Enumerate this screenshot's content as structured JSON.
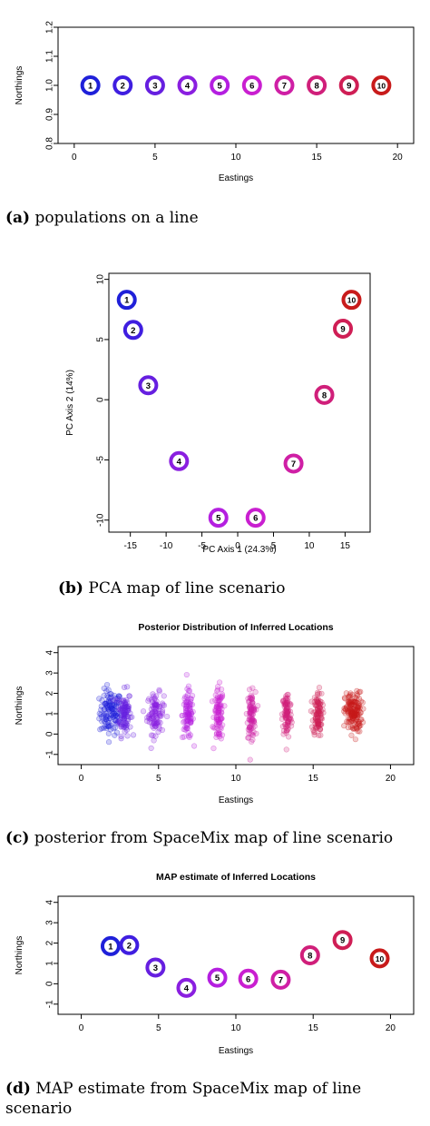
{
  "captions": {
    "a": {
      "tag": "(a)",
      "text": "populations on a line"
    },
    "b": {
      "tag": "(b)",
      "text": "PCA map of line scenario"
    },
    "c": {
      "tag": "(c)",
      "text": "posterior from SpaceMix map of line scenario"
    },
    "d": {
      "tag": "(d)",
      "text": "MAP estimate from SpaceMix map of line",
      "text2": "scenario"
    }
  },
  "chart_data": [
    {
      "type": "scatter",
      "title": "",
      "xlabel": "Eastings",
      "ylabel": "Northings",
      "xlim": [
        -1,
        21
      ],
      "ylim": [
        0.8,
        1.2
      ],
      "xticks": [
        0,
        5,
        10,
        15,
        20
      ],
      "yticks": [
        0.8,
        0.9,
        1.0,
        1.1,
        1.2
      ],
      "ytick_labels": [
        "0.8",
        "0.9",
        "1.0",
        "1.1",
        "1.2"
      ],
      "points": [
        {
          "label": "1",
          "x": 1,
          "y": 1.0
        },
        {
          "label": "2",
          "x": 3,
          "y": 1.0
        },
        {
          "label": "3",
          "x": 5,
          "y": 1.0
        },
        {
          "label": "4",
          "x": 7,
          "y": 1.0
        },
        {
          "label": "5",
          "x": 9,
          "y": 1.0
        },
        {
          "label": "6",
          "x": 11,
          "y": 1.0
        },
        {
          "label": "7",
          "x": 13,
          "y": 1.0
        },
        {
          "label": "8",
          "x": 15,
          "y": 1.0
        },
        {
          "label": "9",
          "x": 17,
          "y": 1.0
        },
        {
          "label": "10",
          "x": 19,
          "y": 1.0
        }
      ]
    },
    {
      "type": "scatter",
      "title": "",
      "xlabel": "PC Axis 1 (24.3%)",
      "ylabel": "PC Axis 2 (14%)",
      "xlim": [
        -18,
        18.5
      ],
      "ylim": [
        -11,
        10.5
      ],
      "xticks": [
        -15,
        -10,
        -5,
        0,
        5,
        10,
        15
      ],
      "yticks": [
        -10,
        -5,
        0,
        5,
        10
      ],
      "points": [
        {
          "label": "1",
          "x": -15.5,
          "y": 8.3
        },
        {
          "label": "2",
          "x": -14.6,
          "y": 5.8
        },
        {
          "label": "3",
          "x": -12.5,
          "y": 1.2
        },
        {
          "label": "4",
          "x": -8.2,
          "y": -5.1
        },
        {
          "label": "5",
          "x": -2.7,
          "y": -9.8
        },
        {
          "label": "6",
          "x": 2.5,
          "y": -9.8
        },
        {
          "label": "7",
          "x": 7.8,
          "y": -5.3
        },
        {
          "label": "8",
          "x": 12.1,
          "y": 0.4
        },
        {
          "label": "9",
          "x": 14.7,
          "y": 5.9
        },
        {
          "label": "10",
          "x": 15.9,
          "y": 8.3
        }
      ]
    },
    {
      "type": "scatter",
      "title": "Posterior Distribution of Inferred Locations",
      "xlabel": "Eastings",
      "ylabel": "Northings",
      "xlim": [
        -1.5,
        21.5
      ],
      "ylim": [
        -1.5,
        4.3
      ],
      "xticks": [
        0,
        5,
        10,
        15,
        20
      ],
      "yticks": [
        -1,
        0,
        1,
        2,
        3,
        4
      ],
      "clusters": [
        {
          "x": 1.9,
          "y": 1.05,
          "xspread": 0.6,
          "yspread": 0.55,
          "n": 120
        },
        {
          "x": 2.8,
          "y": 1.05,
          "xspread": 0.35,
          "yspread": 0.55,
          "n": 90
        },
        {
          "x": 4.8,
          "y": 1.0,
          "xspread": 0.45,
          "yspread": 0.5,
          "n": 95
        },
        {
          "x": 6.9,
          "y": 0.95,
          "xspread": 0.3,
          "yspread": 0.6,
          "n": 90
        },
        {
          "x": 8.9,
          "y": 0.95,
          "xspread": 0.25,
          "yspread": 0.65,
          "n": 90
        },
        {
          "x": 11.0,
          "y": 0.95,
          "xspread": 0.22,
          "yspread": 0.55,
          "n": 90
        },
        {
          "x": 13.3,
          "y": 0.95,
          "xspread": 0.25,
          "yspread": 0.6,
          "n": 90
        },
        {
          "x": 15.3,
          "y": 1.0,
          "xspread": 0.25,
          "yspread": 0.55,
          "n": 100
        },
        {
          "x": 17.6,
          "y": 1.05,
          "xspread": 0.45,
          "yspread": 0.5,
          "n": 160
        }
      ]
    },
    {
      "type": "scatter",
      "title": "MAP estimate of Inferred Locations",
      "xlabel": "Eastings",
      "ylabel": "Northings",
      "xlim": [
        -1.5,
        21.5
      ],
      "ylim": [
        -1.5,
        4.3
      ],
      "xticks": [
        0,
        5,
        10,
        15,
        20
      ],
      "yticks": [
        -1,
        0,
        1,
        2,
        3,
        4
      ],
      "points": [
        {
          "label": "1",
          "x": 1.9,
          "y": 1.85
        },
        {
          "label": "2",
          "x": 3.1,
          "y": 1.9
        },
        {
          "label": "3",
          "x": 4.8,
          "y": 0.8
        },
        {
          "label": "4",
          "x": 6.8,
          "y": -0.2
        },
        {
          "label": "5",
          "x": 8.8,
          "y": 0.3
        },
        {
          "label": "6",
          "x": 10.8,
          "y": 0.25
        },
        {
          "label": "7",
          "x": 12.9,
          "y": 0.2
        },
        {
          "label": "8",
          "x": 14.8,
          "y": 1.4
        },
        {
          "label": "9",
          "x": 16.9,
          "y": 2.15
        },
        {
          "label": "10",
          "x": 19.3,
          "y": 1.25
        }
      ]
    }
  ],
  "colors": [
    "#1f20d9",
    "#3f1ee0",
    "#661fe0",
    "#8a1fe0",
    "#b41fe0",
    "#c91fd0",
    "#cf1fa5",
    "#d01f7a",
    "#cf1e55",
    "#c81b1b"
  ]
}
